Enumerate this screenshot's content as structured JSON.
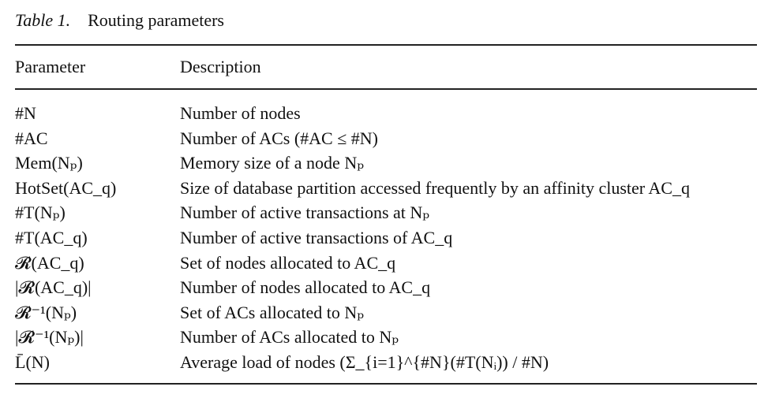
{
  "caption": {
    "label": "Table 1.",
    "title": "Routing parameters"
  },
  "headers": {
    "parameter": "Parameter",
    "description": "Description"
  },
  "rows": [
    {
      "parameter": "#N",
      "description": "Number of nodes"
    },
    {
      "parameter": "#AC",
      "description": "Number of ACs (#AC ≤ #N)"
    },
    {
      "parameter": "Mem(Nₚ)",
      "description": "Memory size of a node Nₚ"
    },
    {
      "parameter": "HotSet(AC_q)",
      "description": "Size of database partition accessed frequently by an affinity cluster AC_q"
    },
    {
      "parameter": "#T(Nₚ)",
      "description": "Number of active transactions at Nₚ"
    },
    {
      "parameter": "#T(AC_q)",
      "description": "Number of active transactions of AC_q"
    },
    {
      "parameter": "𝓡(AC_q)",
      "description": "Set of nodes allocated to AC_q"
    },
    {
      "parameter": "|𝓡(AC_q)|",
      "description": "Number of nodes allocated to AC_q"
    },
    {
      "parameter": "𝓡⁻¹(Nₚ)",
      "description": "Set of ACs allocated to Nₚ"
    },
    {
      "parameter": "|𝓡⁻¹(Nₚ)|",
      "description": "Number of ACs allocated to Nₚ"
    },
    {
      "parameter": "L̄(N)",
      "description": "Average load of nodes (Σ_{i=1}^{#N}(#T(Nᵢ)) / #N)"
    }
  ]
}
